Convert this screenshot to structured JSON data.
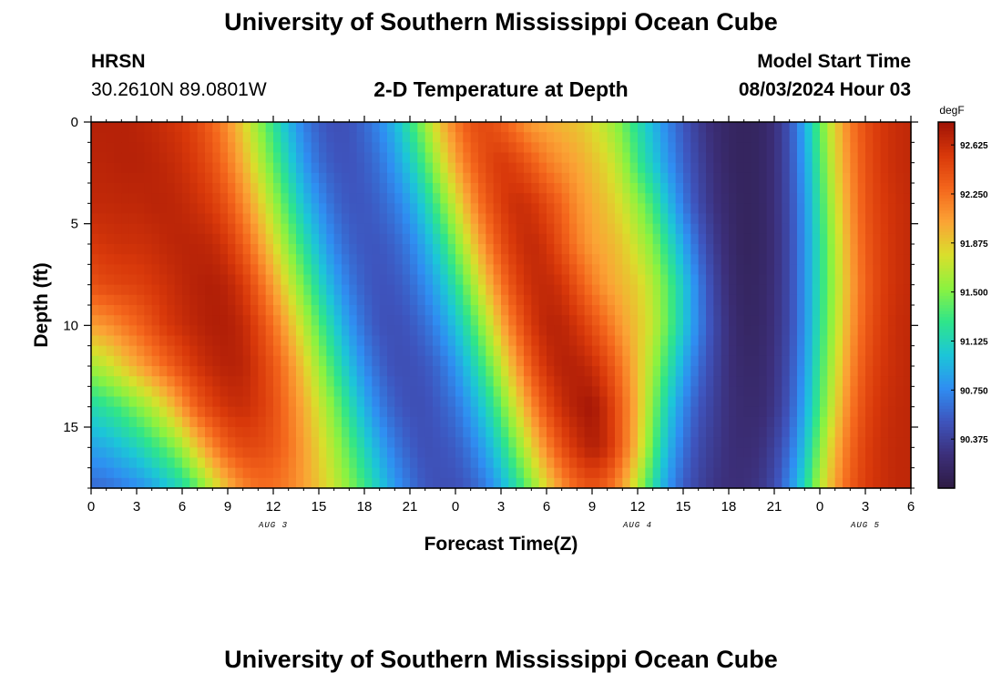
{
  "header": {
    "title": "University of Southern Mississippi Ocean Cube",
    "station": "HRSN",
    "coords": "30.2610N  89.0801W",
    "subtitle": "2-D Temperature at Depth",
    "model_label": "Model Start Time",
    "model_time": "08/03/2024 Hour 03"
  },
  "footer": {
    "title": "University of Southern Mississippi Ocean Cube"
  },
  "chart_data": {
    "type": "heatmap",
    "title": "2-D Temperature at Depth",
    "xlabel": "Forecast Time(Z)",
    "ylabel": "Depth (ft)",
    "x_range_hours": [
      0,
      54
    ],
    "x_ticks": [
      {
        "hour": 0,
        "label": "0"
      },
      {
        "hour": 3,
        "label": "3"
      },
      {
        "hour": 6,
        "label": "6"
      },
      {
        "hour": 9,
        "label": "9"
      },
      {
        "hour": 12,
        "label": "12"
      },
      {
        "hour": 15,
        "label": "15"
      },
      {
        "hour": 18,
        "label": "18"
      },
      {
        "hour": 21,
        "label": "21"
      },
      {
        "hour": 24,
        "label": "0"
      },
      {
        "hour": 27,
        "label": "3"
      },
      {
        "hour": 30,
        "label": "6"
      },
      {
        "hour": 33,
        "label": "9"
      },
      {
        "hour": 36,
        "label": "12"
      },
      {
        "hour": 39,
        "label": "15"
      },
      {
        "hour": 42,
        "label": "18"
      },
      {
        "hour": 45,
        "label": "21"
      },
      {
        "hour": 48,
        "label": "0"
      },
      {
        "hour": 51,
        "label": "3"
      },
      {
        "hour": 54,
        "label": "6"
      }
    ],
    "date_labels": [
      {
        "hour": 12,
        "label": "AUG 3"
      },
      {
        "hour": 36,
        "label": "AUG 4"
      },
      {
        "hour": 51,
        "label": "AUG 5"
      }
    ],
    "y_range_ft": [
      0,
      18
    ],
    "y_inverted": true,
    "y_ticks": [
      0,
      5,
      10,
      15
    ],
    "colorbar": {
      "unit": "degF",
      "range": [
        90.0,
        92.8
      ],
      "ticks": [
        "92.625",
        "92.250",
        "91.875",
        "91.500",
        "91.125",
        "90.750",
        "90.375"
      ],
      "colormap": [
        "#2e1b44",
        "#3c2f7a",
        "#3e54bd",
        "#2f8ef2",
        "#1cc6d8",
        "#2fe58a",
        "#8cf240",
        "#d9df2c",
        "#fba335",
        "#f4661c",
        "#d8380a",
        "#9f1306"
      ]
    },
    "grid": {
      "hours": [
        0,
        1,
        2,
        3,
        4,
        5,
        6,
        7,
        8,
        9,
        10,
        11,
        12,
        13,
        14,
        15,
        16,
        17,
        18,
        19,
        20,
        21,
        22,
        23,
        24,
        25,
        26,
        27,
        28,
        29,
        30,
        31,
        32,
        33,
        34,
        35,
        36,
        37,
        38,
        39,
        40,
        41,
        42,
        43,
        44,
        45,
        46,
        47,
        48,
        49,
        50,
        51,
        52,
        53,
        54
      ],
      "depths_ft": [
        0,
        2,
        4,
        6,
        8,
        10,
        12,
        14,
        16,
        18
      ],
      "temperature_degF": [
        [
          92.7,
          92.68,
          92.65,
          92.55,
          92.4,
          92.05,
          91.6,
          91.15,
          90.85,
          90.6
        ],
        [
          92.7,
          92.68,
          92.65,
          92.58,
          92.45,
          92.1,
          91.7,
          91.25,
          90.9,
          90.62
        ],
        [
          92.7,
          92.7,
          92.66,
          92.6,
          92.48,
          92.2,
          91.85,
          91.35,
          91.0,
          90.68
        ],
        [
          92.68,
          92.7,
          92.66,
          92.6,
          92.5,
          92.3,
          92.0,
          91.5,
          91.1,
          90.75
        ],
        [
          92.65,
          92.68,
          92.68,
          92.62,
          92.55,
          92.42,
          92.15,
          91.65,
          91.25,
          90.85
        ],
        [
          92.6,
          92.65,
          92.68,
          92.66,
          92.6,
          92.55,
          92.3,
          91.85,
          91.4,
          91.0
        ],
        [
          92.55,
          92.6,
          92.65,
          92.68,
          92.66,
          92.62,
          92.45,
          92.1,
          91.6,
          91.15
        ],
        [
          92.45,
          92.52,
          92.6,
          92.68,
          92.7,
          92.68,
          92.58,
          92.35,
          91.9,
          91.4
        ],
        [
          92.3,
          92.4,
          92.52,
          92.65,
          92.72,
          92.72,
          92.66,
          92.5,
          92.15,
          91.7
        ],
        [
          92.1,
          92.22,
          92.38,
          92.55,
          92.68,
          92.72,
          92.7,
          92.6,
          92.35,
          91.95
        ],
        [
          91.85,
          91.98,
          92.15,
          92.35,
          92.55,
          92.65,
          92.68,
          92.62,
          92.45,
          92.15
        ],
        [
          91.55,
          91.7,
          91.9,
          92.1,
          92.32,
          92.48,
          92.55,
          92.55,
          92.45,
          92.25
        ],
        [
          91.25,
          91.4,
          91.6,
          91.82,
          92.05,
          92.25,
          92.38,
          92.42,
          92.38,
          92.25
        ],
        [
          90.95,
          91.1,
          91.3,
          91.52,
          91.75,
          91.98,
          92.15,
          92.22,
          92.25,
          92.18
        ],
        [
          90.7,
          90.82,
          91.0,
          91.22,
          91.45,
          91.68,
          91.88,
          92.0,
          92.05,
          92.05
        ],
        [
          90.55,
          90.62,
          90.78,
          90.95,
          91.15,
          91.38,
          91.58,
          91.75,
          91.85,
          91.9
        ],
        [
          90.48,
          90.52,
          90.6,
          90.72,
          90.88,
          91.08,
          91.28,
          91.48,
          91.62,
          91.72
        ],
        [
          90.5,
          90.5,
          90.52,
          90.58,
          90.68,
          90.82,
          91.0,
          91.2,
          91.38,
          91.52
        ],
        [
          90.6,
          90.55,
          90.52,
          90.52,
          90.55,
          90.62,
          90.75,
          90.92,
          91.12,
          91.3
        ],
        [
          90.75,
          90.65,
          90.58,
          90.52,
          90.5,
          90.5,
          90.58,
          90.7,
          90.88,
          91.05
        ],
        [
          90.95,
          90.82,
          90.68,
          90.58,
          90.52,
          90.48,
          90.48,
          90.55,
          90.68,
          90.82
        ],
        [
          91.25,
          91.05,
          90.85,
          90.7,
          90.6,
          90.52,
          90.48,
          90.48,
          90.55,
          90.65
        ],
        [
          91.58,
          91.35,
          91.1,
          90.9,
          90.75,
          90.62,
          90.52,
          90.48,
          90.48,
          90.52
        ],
        [
          91.92,
          91.7,
          91.42,
          91.15,
          90.95,
          90.78,
          90.62,
          90.55,
          90.5,
          90.48
        ],
        [
          92.2,
          92.02,
          91.75,
          91.48,
          91.22,
          91.0,
          90.8,
          90.65,
          90.55,
          90.48
        ],
        [
          92.4,
          92.28,
          92.08,
          91.82,
          91.55,
          91.28,
          91.05,
          90.85,
          90.68,
          90.55
        ],
        [
          92.45,
          92.45,
          92.35,
          92.15,
          91.9,
          91.62,
          91.35,
          91.1,
          90.88,
          90.68
        ],
        [
          92.35,
          92.55,
          92.52,
          92.42,
          92.22,
          91.98,
          91.7,
          91.42,
          91.15,
          90.9
        ],
        [
          92.2,
          92.48,
          92.62,
          92.58,
          92.48,
          92.3,
          92.05,
          91.78,
          91.48,
          91.18
        ],
        [
          92.05,
          92.35,
          92.58,
          92.65,
          92.62,
          92.55,
          92.38,
          92.12,
          91.82,
          91.5
        ],
        [
          92.0,
          92.2,
          92.45,
          92.58,
          92.65,
          92.68,
          92.6,
          92.42,
          92.15,
          91.82
        ],
        [
          91.95,
          92.1,
          92.3,
          92.4,
          92.58,
          92.68,
          92.7,
          92.62,
          92.42,
          92.1
        ],
        [
          91.9,
          92.02,
          92.12,
          92.2,
          92.4,
          92.58,
          92.7,
          92.72,
          92.6,
          92.3
        ],
        [
          91.8,
          91.92,
          92.0,
          92.05,
          92.2,
          92.42,
          92.62,
          92.78,
          92.72,
          92.4
        ],
        [
          91.65,
          91.8,
          91.9,
          91.98,
          92.05,
          92.25,
          92.45,
          92.6,
          92.62,
          92.3
        ],
        [
          91.45,
          91.6,
          91.75,
          91.88,
          91.95,
          92.05,
          92.2,
          92.3,
          92.3,
          92.05
        ],
        [
          91.2,
          91.3,
          91.55,
          91.7,
          91.85,
          91.9,
          91.92,
          91.95,
          91.9,
          91.65
        ],
        [
          90.95,
          91.05,
          91.3,
          91.5,
          91.65,
          91.7,
          91.6,
          91.5,
          91.4,
          91.2
        ],
        [
          90.72,
          90.8,
          90.98,
          91.2,
          91.38,
          91.4,
          91.25,
          91.08,
          90.95,
          90.8
        ],
        [
          90.52,
          90.58,
          90.68,
          90.88,
          91.05,
          91.05,
          90.9,
          90.75,
          90.65,
          90.55
        ],
        [
          90.35,
          90.4,
          90.45,
          90.58,
          90.7,
          90.72,
          90.62,
          90.52,
          90.45,
          90.4
        ],
        [
          90.22,
          90.25,
          90.28,
          90.35,
          90.42,
          90.45,
          90.42,
          90.38,
          90.34,
          90.3
        ],
        [
          90.15,
          90.15,
          90.18,
          90.2,
          90.22,
          90.25,
          90.25,
          90.25,
          90.25,
          90.25
        ],
        [
          90.12,
          90.12,
          90.12,
          90.12,
          90.14,
          90.15,
          90.18,
          90.2,
          90.22,
          90.25
        ],
        [
          90.14,
          90.14,
          90.14,
          90.14,
          90.15,
          90.16,
          90.18,
          90.2,
          90.25,
          90.3
        ],
        [
          90.25,
          90.25,
          90.25,
          90.24,
          90.25,
          90.26,
          90.28,
          90.3,
          90.38,
          90.45
        ],
        [
          90.5,
          90.48,
          90.46,
          90.45,
          90.45,
          90.45,
          90.48,
          90.52,
          90.62,
          90.75
        ],
        [
          90.9,
          90.85,
          90.8,
          90.78,
          90.78,
          90.78,
          90.82,
          90.88,
          91.0,
          91.15
        ],
        [
          91.4,
          91.32,
          91.25,
          91.2,
          91.2,
          91.22,
          91.28,
          91.35,
          91.5,
          91.65
        ],
        [
          91.85,
          91.8,
          91.72,
          91.65,
          91.62,
          91.65,
          91.72,
          91.8,
          91.95,
          92.05
        ],
        [
          92.2,
          92.15,
          92.1,
          92.05,
          92.02,
          92.05,
          92.12,
          92.2,
          92.28,
          92.35
        ],
        [
          92.42,
          92.4,
          92.38,
          92.35,
          92.32,
          92.35,
          92.4,
          92.45,
          92.5,
          92.52
        ],
        [
          92.55,
          92.55,
          92.52,
          92.5,
          92.5,
          92.52,
          92.55,
          92.58,
          92.6,
          92.6
        ],
        [
          92.62,
          92.62,
          92.6,
          92.6,
          92.6,
          92.62,
          92.62,
          92.64,
          92.65,
          92.65
        ],
        [
          92.65,
          92.65,
          92.64,
          92.64,
          92.64,
          92.65,
          92.66,
          92.66,
          92.66,
          92.66
        ]
      ]
    }
  }
}
